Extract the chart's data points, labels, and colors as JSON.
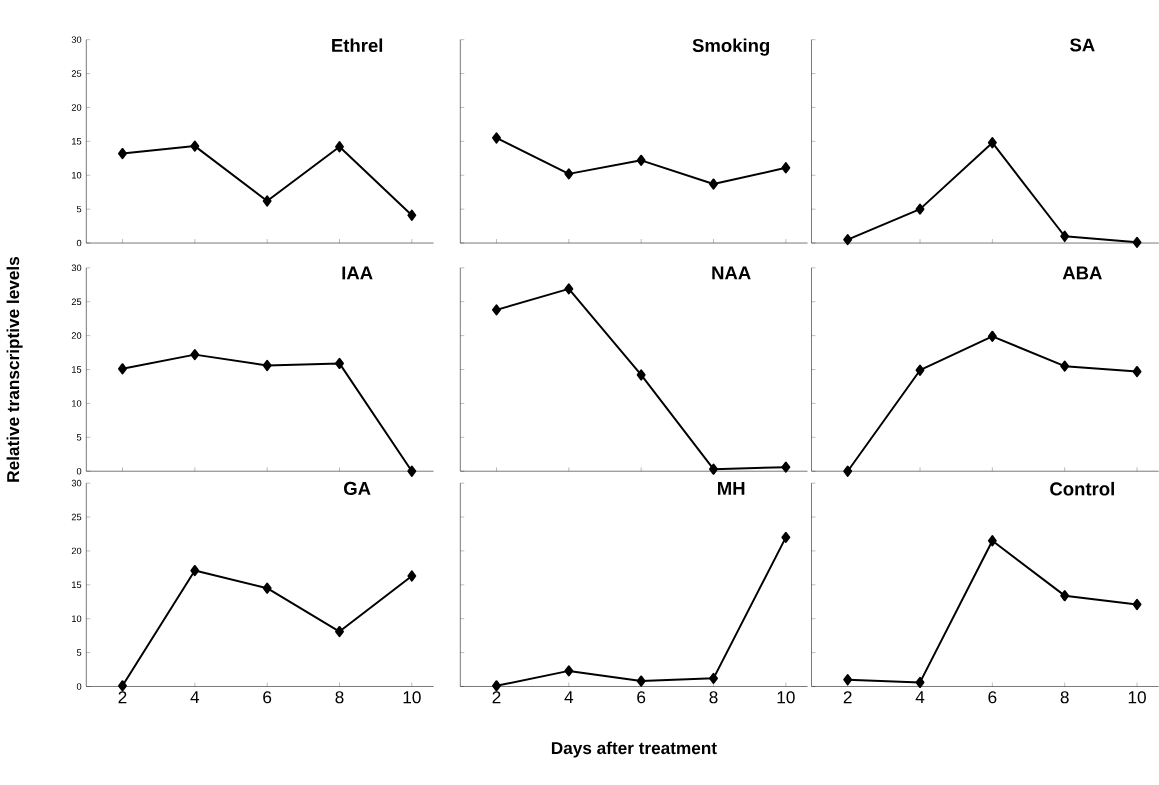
{
  "chart_data": [
    {
      "type": "line",
      "title": "Ethrel",
      "categories": [
        "2",
        "4",
        "6",
        "8",
        "10"
      ],
      "series": [
        {
          "color": "#000000",
          "values": [
            13.2,
            14.3,
            6.2,
            14.2,
            4.1
          ]
        }
      ],
      "ylim": [
        0,
        30
      ],
      "yticks": [
        0,
        5,
        10,
        15,
        20,
        25,
        30
      ],
      "marker": "diamond",
      "line_style": "solid",
      "tick_labels": "y"
    },
    {
      "type": "line",
      "title": "Smoking",
      "categories": [
        "2",
        "4",
        "6",
        "8",
        "10"
      ],
      "series": [
        {
          "color": "#000000",
          "values": [
            15.5,
            10.2,
            12.2,
            8.7,
            11.1
          ]
        }
      ],
      "ylim": [
        0,
        30
      ],
      "yticks": [
        0,
        5,
        10,
        15,
        20,
        25,
        30
      ],
      "marker": "diamond",
      "line_style": "solid",
      "tick_labels": false
    },
    {
      "type": "line",
      "title": "SA",
      "categories": [
        "2",
        "4",
        "6",
        "8",
        "10"
      ],
      "series": [
        {
          "color": "#000000",
          "values": [
            0.5,
            5.0,
            14.8,
            1.0,
            0.1
          ]
        }
      ],
      "ylim": [
        0,
        30
      ],
      "yticks": [
        0,
        5,
        10,
        15,
        20,
        25,
        30
      ],
      "marker": "diamond",
      "line_style": "solid",
      "tick_labels": false
    },
    {
      "type": "line",
      "title": "IAA",
      "ylabel": "Relative transcriptive levels",
      "categories": [
        "2",
        "4",
        "6",
        "8",
        "10"
      ],
      "series": [
        {
          "color": "#000000",
          "values": [
            15.1,
            17.2,
            15.6,
            15.9,
            0
          ]
        }
      ],
      "ylim": [
        0,
        30
      ],
      "yticks": [
        0,
        5,
        10,
        15,
        20,
        25,
        30
      ],
      "marker": "diamond",
      "line_style": "solid",
      "tick_labels": "y"
    },
    {
      "type": "line",
      "title": "NAA",
      "categories": [
        "2",
        "4",
        "6",
        "8",
        "10"
      ],
      "series": [
        {
          "color": "#000000",
          "values": [
            23.8,
            26.9,
            14.2,
            0.3,
            0.6
          ]
        }
      ],
      "ylim": [
        0,
        30
      ],
      "yticks": [
        0,
        5,
        10,
        15,
        20,
        25,
        30
      ],
      "marker": "diamond",
      "line_style": "solid",
      "tick_labels": false
    },
    {
      "type": "line",
      "title": "ABA",
      "categories": [
        "2",
        "4",
        "6",
        "8",
        "10"
      ],
      "series": [
        {
          "color": "#000000",
          "values": [
            0,
            14.9,
            19.9,
            15.5,
            14.7
          ]
        }
      ],
      "ylim": [
        0,
        30
      ],
      "yticks": [
        0,
        5,
        10,
        15,
        20,
        25,
        30
      ],
      "marker": "diamond",
      "line_style": "solid",
      "tick_labels": false
    },
    {
      "type": "line",
      "title": "GA",
      "categories": [
        "2",
        "4",
        "6",
        "8",
        "10"
      ],
      "series": [
        {
          "color": "#000000",
          "values": [
            0.1,
            17.1,
            14.5,
            8.1,
            16.3
          ]
        }
      ],
      "ylim": [
        0,
        30
      ],
      "yticks": [
        0,
        5,
        10,
        15,
        20,
        25,
        30
      ],
      "marker": "diamond",
      "line_style": "solid"
    },
    {
      "type": "line",
      "title": "MH",
      "xlabel": "Days after treatment",
      "categories": [
        "2",
        "4",
        "6",
        "8",
        "10"
      ],
      "series": [
        {
          "color": "#000000",
          "values": [
            0.1,
            2.3,
            0.8,
            1.2,
            22
          ]
        }
      ],
      "ylim": [
        0,
        30
      ],
      "yticks": [
        0,
        5,
        10,
        15,
        20,
        25,
        30
      ],
      "marker": "diamond",
      "line_style": "solid",
      "tick_labels": "x"
    },
    {
      "type": "line",
      "title": "Control",
      "categories": [
        "2",
        "4",
        "6",
        "8",
        "10"
      ],
      "series": [
        {
          "color": "#000000",
          "values": [
            1.0,
            0.6,
            21.5,
            13.4,
            12.1
          ]
        }
      ],
      "ylim": [
        0,
        30
      ],
      "yticks": [
        0,
        5,
        10,
        15,
        20,
        25,
        30
      ],
      "marker": "diamond",
      "line_style": "solid",
      "tick_labels": "x"
    }
  ]
}
